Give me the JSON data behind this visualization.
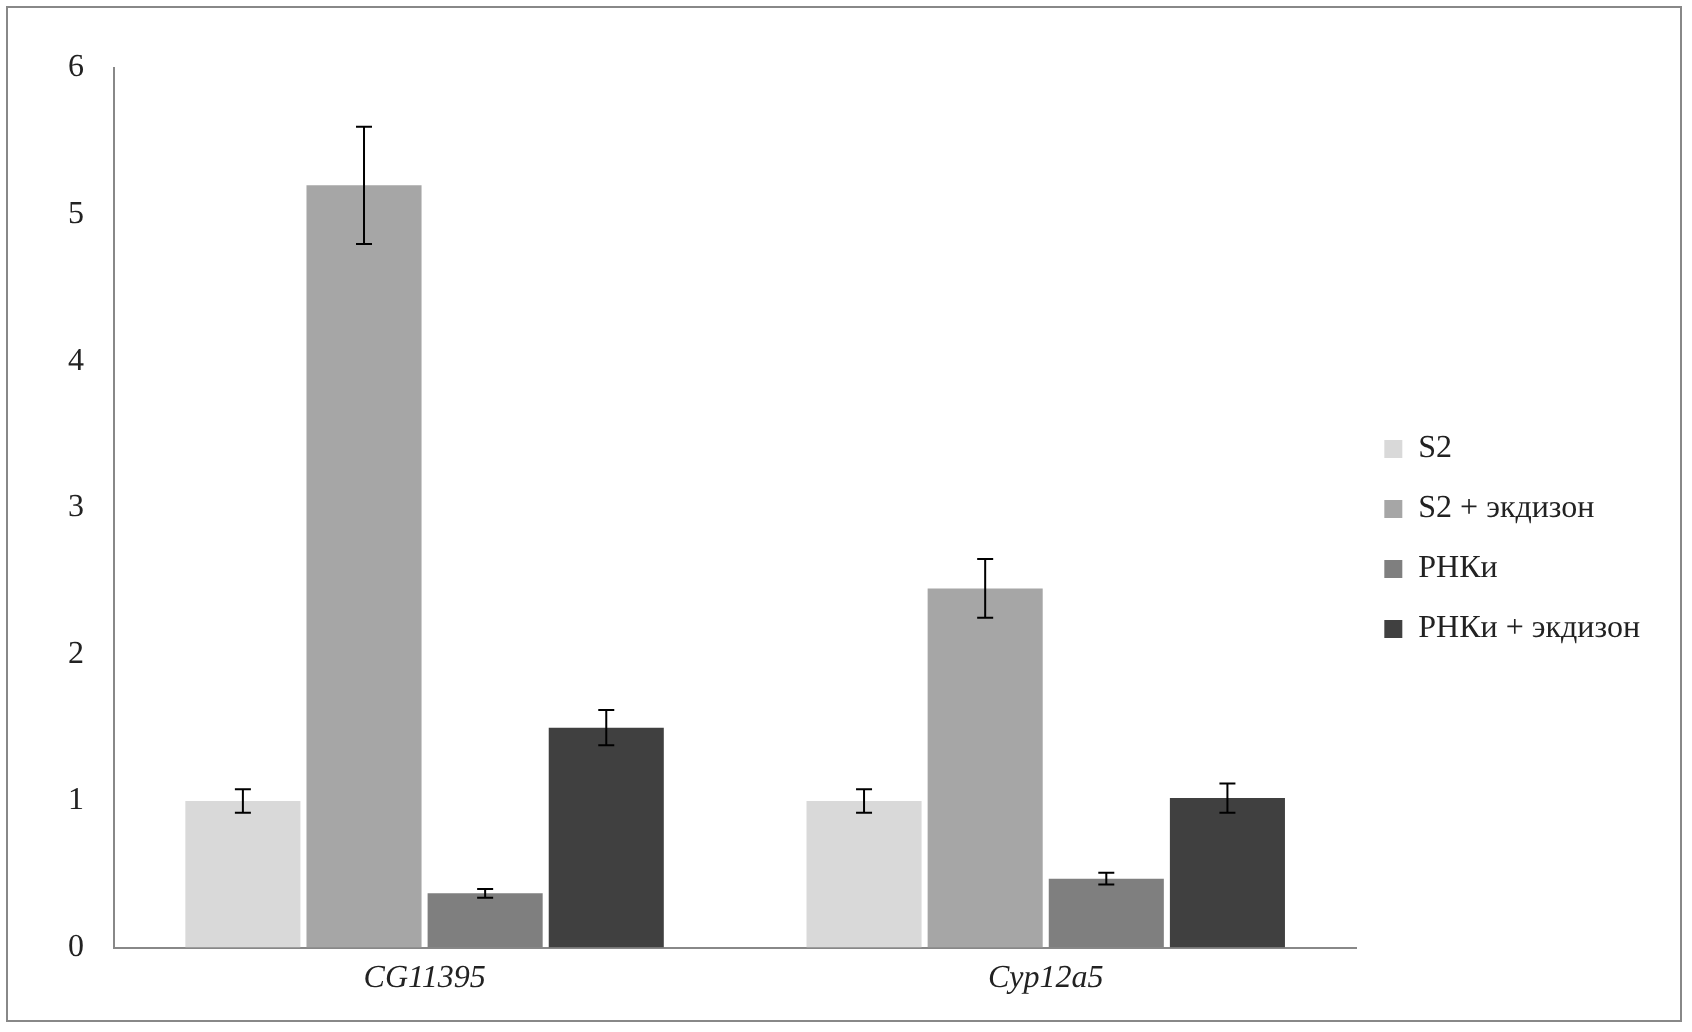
{
  "chart_data": {
    "type": "bar",
    "categories": [
      "CG11395",
      "Cyp12a5"
    ],
    "series": [
      {
        "name": "S2",
        "color": "#d9d9d9",
        "values": [
          1.0,
          1.0
        ],
        "errors": [
          0.08,
          0.08
        ]
      },
      {
        "name": "S2 + экдизон",
        "color": "#a6a6a6",
        "values": [
          5.2,
          2.45
        ],
        "errors": [
          0.4,
          0.2
        ]
      },
      {
        "name": "РНКи",
        "color": "#7f7f7f",
        "values": [
          0.37,
          0.47
        ],
        "errors": [
          0.03,
          0.04
        ]
      },
      {
        "name": "РНКи + экдизон",
        "color": "#404040",
        "values": [
          1.5,
          1.02
        ],
        "errors": [
          0.12,
          0.1
        ]
      }
    ],
    "ylim": [
      0,
      6
    ],
    "yticks": [
      0,
      1,
      2,
      3,
      4,
      5,
      6
    ],
    "grid": false,
    "legend": "right"
  }
}
